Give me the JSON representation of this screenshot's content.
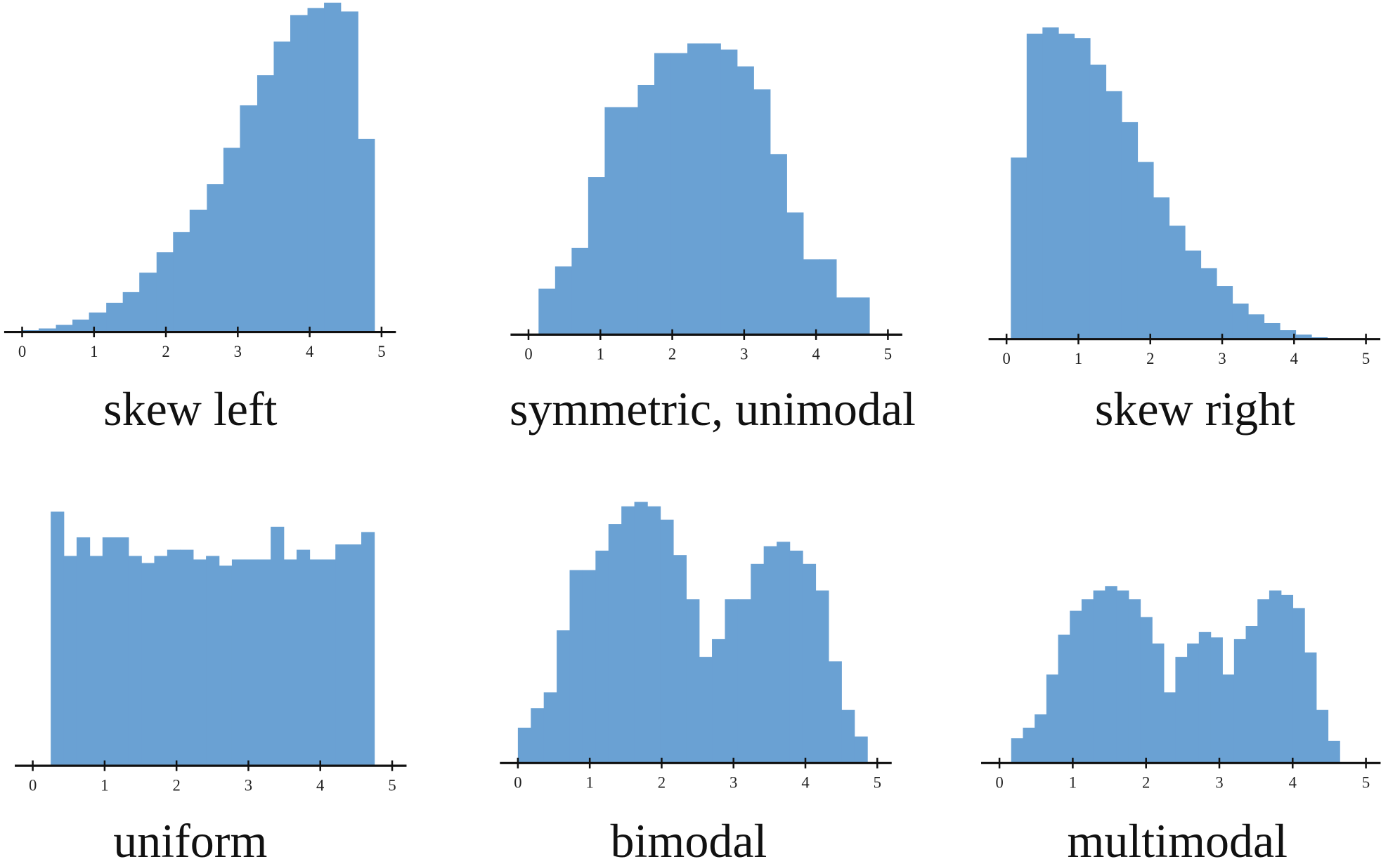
{
  "chart_data": [
    {
      "type": "histogram",
      "title": "skew left",
      "color": "#6aa1d3",
      "bins": [
        0,
        0.23,
        0.47,
        0.7,
        0.93,
        1.17,
        1.4,
        1.63,
        1.87,
        2.1,
        2.33,
        2.57,
        2.8,
        3.03,
        3.27,
        3.5,
        3.73,
        3.97,
        4.2,
        4.43,
        4.67,
        4.9
      ],
      "counts": [
        2,
        4,
        8,
        14,
        22,
        33,
        45,
        67,
        90,
        113,
        138,
        167,
        208,
        256,
        290,
        328,
        358,
        366,
        372,
        362,
        218
      ],
      "xlim": [
        -0.25,
        5.2
      ],
      "xticks": [
        0,
        1,
        2,
        3,
        4,
        5
      ],
      "ylim": [
        0,
        380
      ]
    },
    {
      "type": "histogram",
      "title": "symmetric, unimodal",
      "color": "#6aa1d3",
      "bins": [
        0.14,
        0.37,
        0.6,
        0.83,
        1.06,
        1.29,
        1.52,
        1.75,
        1.98,
        2.21,
        2.44,
        2.67,
        2.9,
        3.13,
        3.36,
        3.59,
        3.82,
        4.05,
        4.28,
        4.51,
        4.74
      ],
      "counts": [
        52,
        77,
        98,
        178,
        257,
        257,
        282,
        318,
        318,
        329,
        329,
        322,
        303,
        277,
        204,
        138,
        85,
        85,
        42,
        42
      ],
      "xlim": [
        -0.25,
        5.2
      ],
      "xticks": [
        0,
        1,
        2,
        3,
        4,
        5
      ],
      "ylim": [
        0,
        380
      ]
    },
    {
      "type": "histogram",
      "title": "skew right",
      "color": "#6aa1d3",
      "bins": [
        0.06,
        0.28,
        0.5,
        0.72,
        0.94,
        1.16,
        1.38,
        1.6,
        1.82,
        2.04,
        2.26,
        2.48,
        2.7,
        2.92,
        3.14,
        3.36,
        3.58,
        3.8,
        4.02,
        4.24,
        4.46,
        4.68
      ],
      "counts": [
        205,
        345,
        352,
        345,
        340,
        310,
        280,
        245,
        200,
        160,
        128,
        100,
        80,
        60,
        40,
        28,
        18,
        10,
        5,
        2,
        1
      ],
      "xlim": [
        -0.25,
        5.2
      ],
      "xticks": [
        0,
        1,
        2,
        3,
        4,
        5
      ],
      "ylim": [
        0,
        380
      ]
    },
    {
      "type": "histogram",
      "title": "uniform",
      "color": "#6aa1d3",
      "bins": [
        0.25,
        0.43,
        0.61,
        0.79,
        0.97,
        1.15,
        1.33,
        1.51,
        1.69,
        1.87,
        2.05,
        2.23,
        2.41,
        2.59,
        2.77,
        2.95,
        3.13,
        3.31,
        3.49,
        3.67,
        3.85,
        4.03,
        4.21,
        4.39,
        4.57,
        4.75
      ],
      "counts": [
        287,
        237,
        258,
        237,
        258,
        258,
        237,
        229,
        237,
        244,
        244,
        233,
        237,
        226,
        233,
        233,
        233,
        270,
        233,
        244,
        233,
        233,
        250,
        250,
        264
      ],
      "xlim": [
        -0.25,
        5.2
      ],
      "xticks": [
        0,
        1,
        2,
        3,
        4,
        5
      ],
      "ylim": [
        0,
        380
      ]
    },
    {
      "type": "histogram",
      "title": "bimodal",
      "color": "#6aa1d3",
      "bins": [
        0,
        0.18,
        0.36,
        0.54,
        0.72,
        0.9,
        1.08,
        1.26,
        1.44,
        1.62,
        1.8,
        1.98,
        2.16,
        2.34,
        2.52,
        2.7,
        2.88,
        3.06,
        3.24,
        3.42,
        3.6,
        3.78,
        3.96,
        4.14,
        4.32,
        4.5,
        4.68,
        4.86
      ],
      "counts": [
        40,
        62,
        80,
        150,
        218,
        218,
        240,
        270,
        290,
        295,
        290,
        275,
        235,
        185,
        120,
        140,
        185,
        185,
        225,
        245,
        250,
        240,
        225,
        195,
        115,
        60,
        30
      ],
      "xlim": [
        -0.25,
        5.2
      ],
      "xticks": [
        0,
        1,
        2,
        3,
        4,
        5
      ],
      "ylim": [
        0,
        380
      ]
    },
    {
      "type": "histogram",
      "title": "multimodal",
      "color": "#6aa1d3",
      "bins": [
        0.16,
        0.32,
        0.48,
        0.64,
        0.8,
        0.96,
        1.12,
        1.28,
        1.44,
        1.6,
        1.76,
        1.92,
        2.08,
        2.24,
        2.4,
        2.56,
        2.72,
        2.88,
        3.04,
        3.2,
        3.36,
        3.52,
        3.68,
        3.84,
        4.0,
        4.16,
        4.32,
        4.48,
        4.64
      ],
      "counts": [
        28,
        40,
        55,
        100,
        145,
        172,
        185,
        195,
        200,
        195,
        185,
        165,
        135,
        80,
        120,
        135,
        148,
        142,
        100,
        140,
        155,
        185,
        195,
        190,
        175,
        125,
        60,
        25
      ],
      "xlim": [
        -0.25,
        5.2
      ],
      "xticks": [
        0,
        1,
        2,
        3,
        4,
        5
      ],
      "ylim": [
        0,
        380
      ]
    }
  ]
}
